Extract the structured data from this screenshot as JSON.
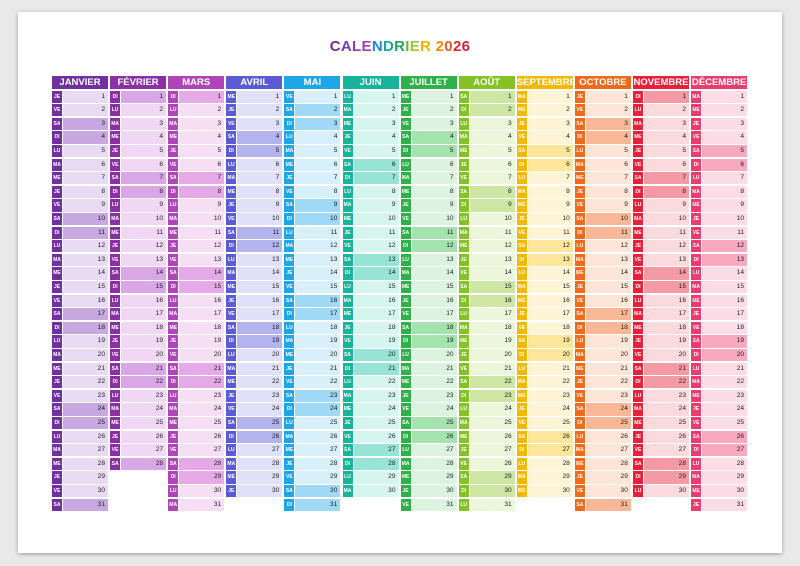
{
  "title": "CALENDRIER 2026",
  "title_colors": [
    "#6e2f9f",
    "#7a3aa8",
    "#8d3cb0",
    "#a03fae",
    "#1e88d6",
    "#1aa3a1",
    "#23a35b",
    "#5fb53a",
    "#9ec536",
    "#f0b400",
    "#f08a00",
    "#e95a1e",
    "#e0262e",
    "#d41f3c",
    "#c21858"
  ],
  "months": [
    {
      "name": "JANVIER",
      "dark": "#7030a0",
      "light": "#e8daf2",
      "mid": "#c7a8e0",
      "start": 3,
      "days": 31
    },
    {
      "name": "FÉVRIER",
      "dark": "#8b2fa4",
      "light": "#f0d8f4",
      "mid": "#d9a6e6",
      "start": 6,
      "days": 28
    },
    {
      "name": "MARS",
      "dark": "#b045b9",
      "light": "#f6def5",
      "mid": "#e4a9e6",
      "start": 6,
      "days": 31
    },
    {
      "name": "AVRIL",
      "dark": "#5b5bd6",
      "light": "#e0e0f8",
      "mid": "#b3b3ee",
      "start": 2,
      "days": 30
    },
    {
      "name": "MAI",
      "dark": "#1ea7e8",
      "light": "#d8f0fb",
      "mid": "#9fd9f5",
      "start": 4,
      "days": 31
    },
    {
      "name": "JUIN",
      "dark": "#17b39a",
      "light": "#d6f5ef",
      "mid": "#97e3d5",
      "start": 0,
      "days": 30
    },
    {
      "name": "JUILLET",
      "dark": "#2fb14a",
      "light": "#dcf3e0",
      "mid": "#a4e2ae",
      "start": 2,
      "days": 31
    },
    {
      "name": "AOÛT",
      "dark": "#84c225",
      "light": "#ecf6da",
      "mid": "#cde6a3",
      "start": 5,
      "days": 31
    },
    {
      "name": "SEPTEMBRE",
      "dark": "#f5b800",
      "light": "#fff5d6",
      "mid": "#fde59a",
      "start": 1,
      "days": 30
    },
    {
      "name": "OCTOBRE",
      "dark": "#f06a1c",
      "light": "#fde6d8",
      "mid": "#f8b897",
      "start": 3,
      "days": 31
    },
    {
      "name": "NOVEMBRE",
      "dark": "#e8203a",
      "light": "#fbdadd",
      "mid": "#f39aa5",
      "start": 6,
      "days": 30
    },
    {
      "name": "DÉCEMBRE",
      "dark": "#e93d6f",
      "light": "#fcdde7",
      "mid": "#f6a9bf",
      "start": 1,
      "days": 31
    }
  ],
  "weekdays": [
    "LU",
    "MA",
    "ME",
    "JE",
    "VE",
    "SA",
    "DI"
  ]
}
